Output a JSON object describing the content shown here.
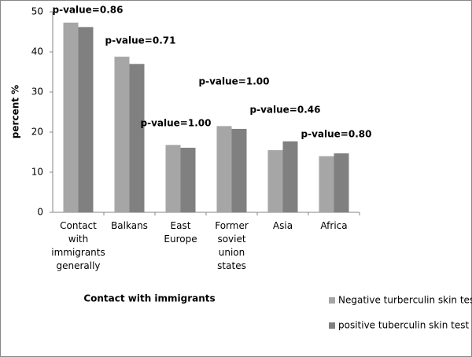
{
  "chart_data": {
    "type": "bar",
    "y_label": "percent %",
    "x_label": "Contact with immigrants",
    "categories": [
      "Contact with immigrants generally",
      "Balkans",
      "East Europe",
      "Former soviet union states",
      "Asia",
      "Africa"
    ],
    "series": [
      {
        "name": "Negative turberculin skin test",
        "color": "#a6a6a6",
        "values": [
          47.3,
          38.8,
          16.8,
          21.5,
          15.5,
          14.0
        ]
      },
      {
        "name": "positive tuberculin skin test",
        "color": "#808080",
        "values": [
          46.2,
          37.0,
          16.1,
          20.8,
          17.7,
          14.7
        ]
      }
    ],
    "annotations": [
      "p-value=0.86",
      "p-value=0.71",
      "p-value=1.00",
      "p-value=1.00",
      "p-value=0.46",
      "p-value=0.80"
    ],
    "ylim": [
      0,
      50
    ],
    "yticks": [
      0,
      10,
      20,
      30,
      40,
      50
    ],
    "grid": false,
    "legend": "bottom-right"
  }
}
